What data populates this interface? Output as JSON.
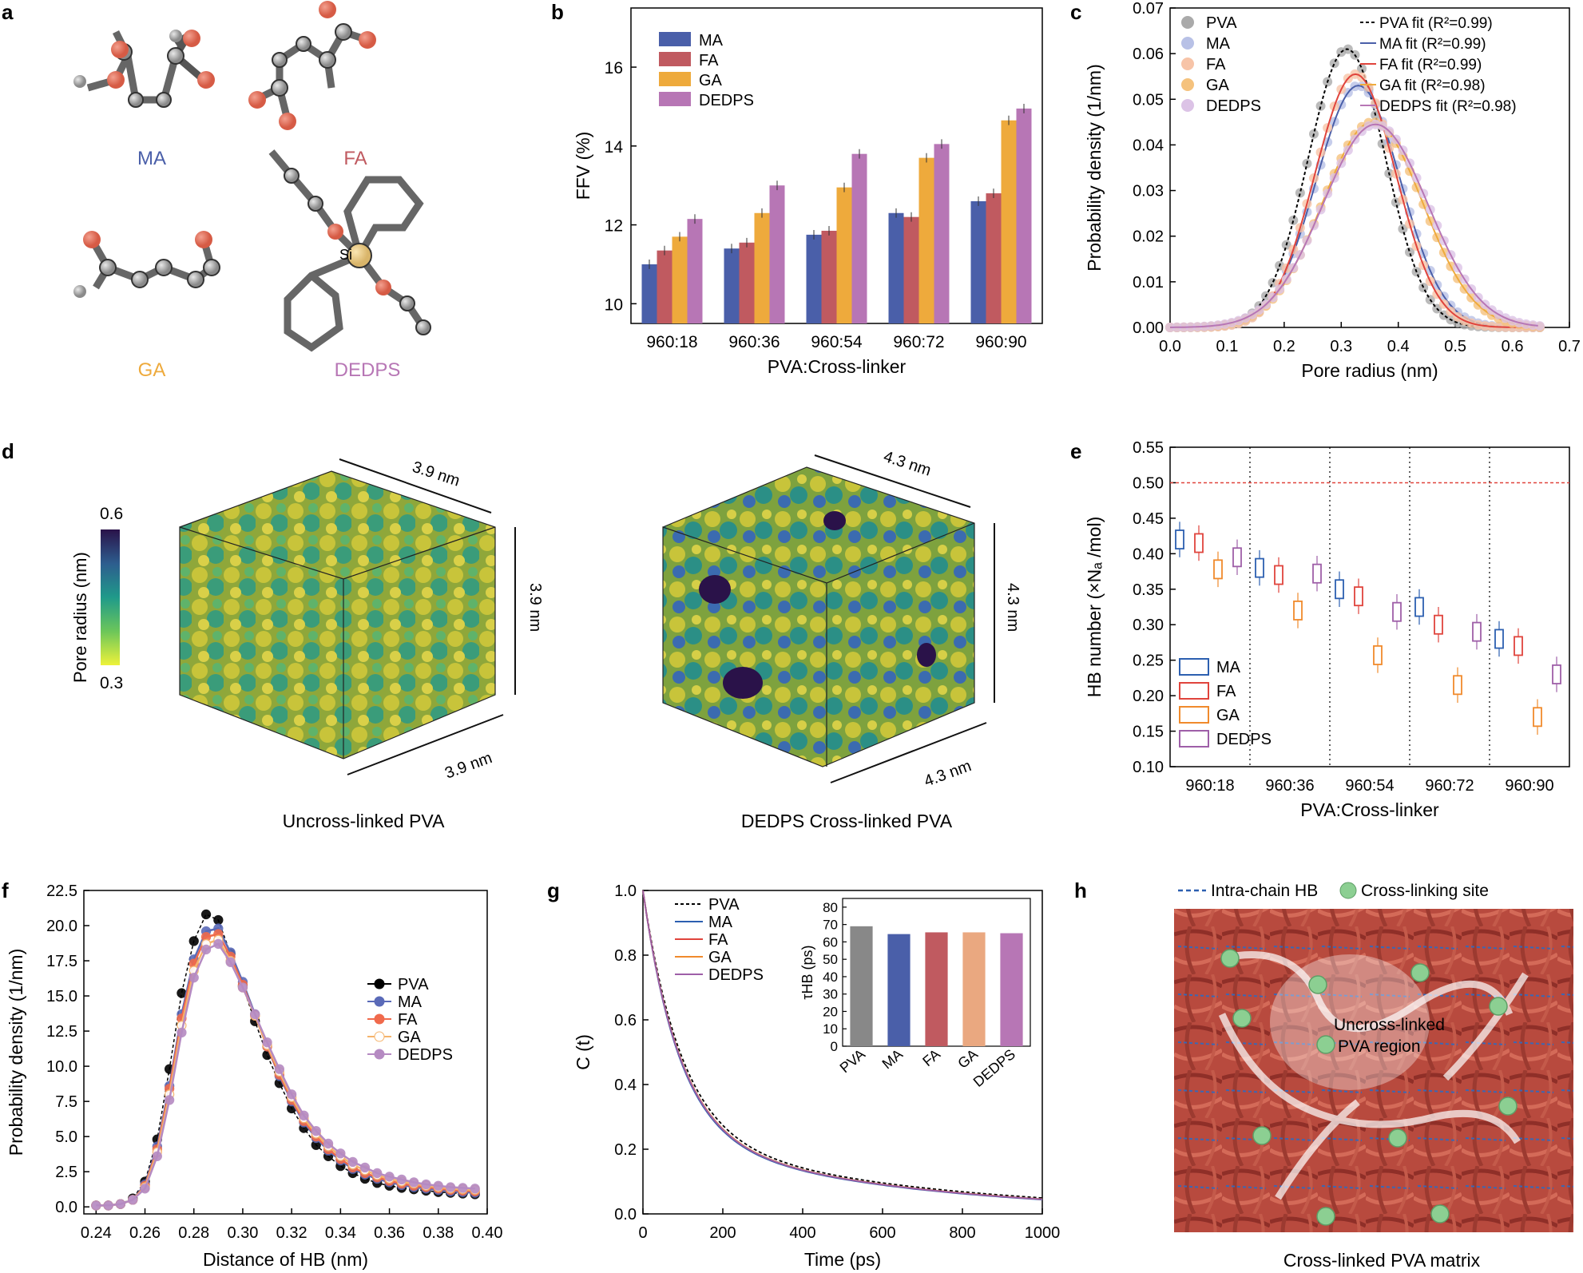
{
  "panels": {
    "a": "a",
    "b": "b",
    "c": "c",
    "d": "d",
    "e": "e",
    "f": "f",
    "g": "g",
    "h": "h"
  },
  "colors": {
    "MA": "#4a5fa9",
    "FA": "#c05a60",
    "GA": "#eeaa3c",
    "DEDPS": "#b776b5",
    "PVA": "#888888",
    "chain": "#b5443c",
    "node": "#8ccf92"
  },
  "panel_a": {
    "molecules": [
      "MA",
      "FA",
      "GA",
      "DEDPS"
    ],
    "atom_labels": {
      "H": "H",
      "O": "O",
      "Si": "Si"
    }
  },
  "panel_d": {
    "colorbar_label": "Pore radius (nm)",
    "colorbar_max": "0.6",
    "colorbar_min": "0.3",
    "left_caption": "Uncross-linked PVA",
    "right_caption": "DEDPS Cross-linked PVA",
    "left_dims": [
      "3.9 nm",
      "3.9 nm",
      "3.9 nm"
    ],
    "right_dims": [
      "4.3 nm",
      "4.3 nm",
      "4.3 nm"
    ]
  },
  "panel_h": {
    "legend_hb": "Intra-chain HB",
    "legend_site": "Cross-linking site",
    "region_label_1": "Uncross-linked",
    "region_label_2": "PVA region",
    "caption": "Cross-linked PVA matrix"
  },
  "chart_data": [
    {
      "id": "b",
      "type": "bar",
      "xlabel": "PVA:Cross-linker",
      "ylabel": "FFV (%)",
      "ylim": [
        9.5,
        17.5
      ],
      "yticks": [
        10,
        12,
        14,
        16
      ],
      "categories": [
        "960:18",
        "960:36",
        "960:54",
        "960:72",
        "960:90"
      ],
      "legend_position": "top-left",
      "series": [
        {
          "name": "MA",
          "values": [
            11.0,
            11.4,
            11.75,
            12.3,
            12.6
          ]
        },
        {
          "name": "FA",
          "values": [
            11.35,
            11.55,
            11.85,
            12.2,
            12.8
          ]
        },
        {
          "name": "GA",
          "values": [
            11.7,
            12.3,
            12.95,
            13.7,
            14.65
          ]
        },
        {
          "name": "DEDPS",
          "values": [
            12.15,
            13.0,
            13.8,
            14.05,
            14.95
          ]
        }
      ]
    },
    {
      "id": "c",
      "type": "line",
      "xlabel": "Pore radius (nm)",
      "ylabel": "Probability density (1/nm)",
      "xlim": [
        0.0,
        0.7
      ],
      "ylim": [
        0.0,
        0.07
      ],
      "xticks": [
        "0.0",
        "0.1",
        "0.2",
        "0.3",
        "0.4",
        "0.5",
        "0.6",
        "0.7"
      ],
      "yticks": [
        "0.00",
        "0.01",
        "0.02",
        "0.03",
        "0.04",
        "0.05",
        "0.06",
        "0.07"
      ],
      "scatter_legend": [
        "PVA",
        "MA",
        "FA",
        "GA",
        "DEDPS"
      ],
      "fit_legend": [
        "PVA fit (R²=0.99)",
        "MA fit (R²=0.99)",
        "FA fit (R²=0.99)",
        "GA fit (R²=0.98)",
        "DEDPS fit (R²=0.98)"
      ],
      "series": [
        {
          "name": "PVA",
          "peak": 0.061,
          "center": 0.31,
          "sigma": 0.068
        },
        {
          "name": "MA",
          "peak": 0.053,
          "center": 0.33,
          "sigma": 0.074
        },
        {
          "name": "FA",
          "peak": 0.0555,
          "center": 0.325,
          "sigma": 0.071
        },
        {
          "name": "GA",
          "peak": 0.045,
          "center": 0.355,
          "sigma": 0.088
        },
        {
          "name": "DEDPS",
          "peak": 0.0445,
          "center": 0.36,
          "sigma": 0.092
        }
      ]
    },
    {
      "id": "e",
      "type": "box",
      "xlabel": "PVA:Cross-linker",
      "ylabel": "HB number (×Nₐ /mol)",
      "ylim": [
        0.1,
        0.55
      ],
      "yticks": [
        "0.10",
        "0.15",
        "0.20",
        "0.25",
        "0.30",
        "0.35",
        "0.40",
        "0.45",
        "0.50",
        "0.55"
      ],
      "reference_line": 0.5,
      "categories": [
        "960:18",
        "960:36",
        "960:54",
        "960:72",
        "960:90"
      ],
      "legend_position": "bottom-left",
      "series": [
        {
          "name": "MA",
          "values": [
            0.42,
            0.38,
            0.35,
            0.325,
            0.28
          ]
        },
        {
          "name": "FA",
          "values": [
            0.415,
            0.37,
            0.34,
            0.3,
            0.27
          ]
        },
        {
          "name": "GA",
          "values": [
            0.378,
            0.32,
            0.257,
            0.215,
            0.17
          ]
        },
        {
          "name": "DEDPS",
          "values": [
            0.395,
            0.372,
            0.318,
            0.29,
            0.23
          ]
        }
      ]
    },
    {
      "id": "f",
      "type": "line",
      "xlabel": "Distance of HB (nm)",
      "ylabel": "Probability density (1/nm)",
      "xlim": [
        0.235,
        0.4
      ],
      "ylim": [
        -0.5,
        22.5
      ],
      "xticks": [
        "0.24",
        "0.26",
        "0.28",
        "0.30",
        "0.32",
        "0.34",
        "0.36",
        "0.38",
        "0.40"
      ],
      "yticks": [
        "0.0",
        "2.5",
        "5.0",
        "7.5",
        "10.0",
        "12.5",
        "15.0",
        "17.5",
        "20.0",
        "22.5"
      ],
      "x": [
        0.24,
        0.245,
        0.25,
        0.255,
        0.26,
        0.265,
        0.27,
        0.275,
        0.28,
        0.285,
        0.29,
        0.295,
        0.3,
        0.305,
        0.31,
        0.315,
        0.32,
        0.325,
        0.33,
        0.335,
        0.34,
        0.345,
        0.35,
        0.355,
        0.36,
        0.365,
        0.37,
        0.375,
        0.38,
        0.385,
        0.39,
        0.395
      ],
      "series": [
        {
          "name": "PVA",
          "values": [
            0.1,
            0.1,
            0.2,
            0.6,
            1.8,
            4.8,
            9.8,
            15.2,
            18.9,
            20.8,
            20.4,
            18.0,
            15.7,
            13.2,
            10.8,
            8.8,
            7.0,
            5.6,
            4.4,
            3.6,
            2.9,
            2.4,
            2.0,
            1.7,
            1.5,
            1.35,
            1.25,
            1.15,
            1.05,
            1.0,
            0.95,
            0.9
          ]
        },
        {
          "name": "MA",
          "values": [
            0.1,
            0.1,
            0.2,
            0.5,
            1.6,
            4.3,
            8.6,
            13.7,
            17.6,
            19.6,
            19.8,
            18.1,
            16.0,
            13.7,
            11.4,
            9.3,
            7.5,
            6.0,
            4.9,
            4.0,
            3.3,
            2.7,
            2.3,
            2.0,
            1.75,
            1.55,
            1.4,
            1.3,
            1.2,
            1.1,
            1.05,
            1.0
          ]
        },
        {
          "name": "FA",
          "values": [
            0.1,
            0.1,
            0.2,
            0.5,
            1.5,
            4.1,
            8.4,
            13.4,
            17.3,
            19.2,
            19.4,
            17.8,
            15.8,
            13.6,
            11.4,
            9.4,
            7.6,
            6.1,
            5.0,
            4.1,
            3.4,
            2.8,
            2.4,
            2.1,
            1.85,
            1.65,
            1.5,
            1.4,
            1.3,
            1.2,
            1.15,
            1.1
          ]
        },
        {
          "name": "GA",
          "values": [
            0.1,
            0.1,
            0.2,
            0.5,
            1.4,
            3.9,
            8.0,
            12.9,
            16.8,
            18.7,
            19.0,
            17.5,
            15.6,
            13.6,
            11.5,
            9.6,
            7.8,
            6.3,
            5.2,
            4.3,
            3.6,
            3.0,
            2.6,
            2.25,
            2.0,
            1.8,
            1.65,
            1.5,
            1.4,
            1.3,
            1.25,
            1.2
          ]
        },
        {
          "name": "DEDPS",
          "values": [
            0.1,
            0.1,
            0.2,
            0.5,
            1.3,
            3.6,
            7.6,
            12.4,
            16.3,
            18.3,
            18.7,
            17.4,
            15.6,
            13.7,
            11.7,
            9.8,
            8.0,
            6.5,
            5.4,
            4.5,
            3.8,
            3.2,
            2.8,
            2.4,
            2.15,
            1.95,
            1.75,
            1.6,
            1.5,
            1.4,
            1.35,
            1.3
          ]
        }
      ]
    },
    {
      "id": "g",
      "type": "line",
      "xlabel": "Time (ps)",
      "ylabel": "C (t)",
      "xlim": [
        0,
        1000
      ],
      "ylim": [
        0.0,
        1.0
      ],
      "xticks": [
        "0",
        "200",
        "400",
        "600",
        "800",
        "1000"
      ],
      "yticks": [
        "0.0",
        "0.2",
        "0.4",
        "0.6",
        "0.8",
        "1.0"
      ],
      "series": [
        {
          "name": "PVA",
          "tau": 68.5
        },
        {
          "name": "MA",
          "tau": 64
        },
        {
          "name": "FA",
          "tau": 65
        },
        {
          "name": "GA",
          "tau": 65.5
        },
        {
          "name": "DEDPS",
          "tau": 65
        }
      ],
      "inset": {
        "type": "bar",
        "ylabel": "τHB (ps)",
        "ylim": [
          0,
          85
        ],
        "yticks": [
          "0",
          "10",
          "20",
          "30",
          "40",
          "50",
          "60",
          "70",
          "80"
        ],
        "categories": [
          "PVA",
          "MA",
          "FA",
          "GA",
          "DEDPS"
        ],
        "values": [
          69,
          64.5,
          65.5,
          65.5,
          65
        ]
      }
    }
  ]
}
